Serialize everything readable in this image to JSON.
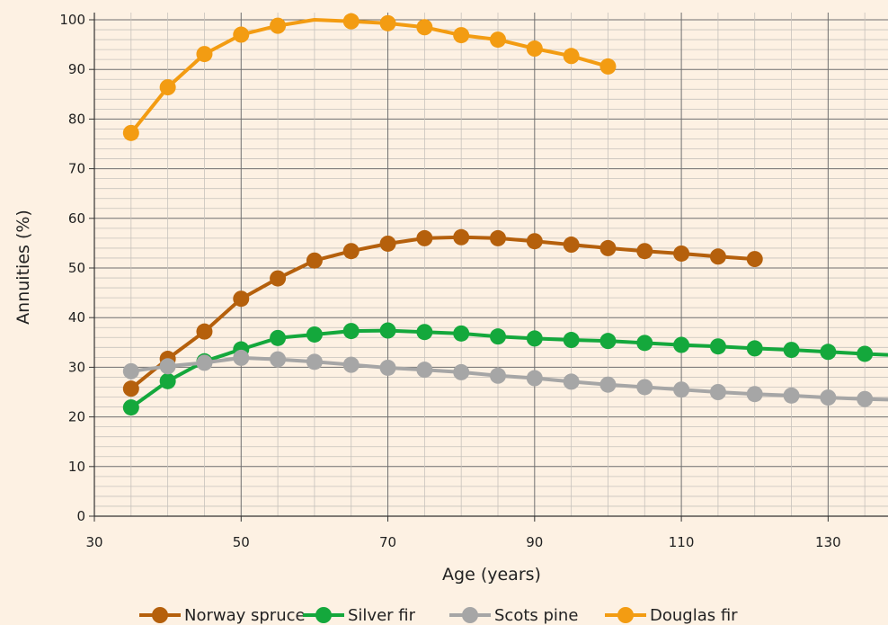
{
  "chart_data": {
    "type": "line",
    "title": "",
    "xlabel": "Age (years)",
    "ylabel": "Annuities (%)",
    "xlim": [
      30,
      140
    ],
    "ylim": [
      0,
      100
    ],
    "x_ticks": [
      30,
      50,
      70,
      90,
      110,
      130
    ],
    "y_ticks": [
      0,
      10,
      20,
      30,
      40,
      50,
      60,
      70,
      80,
      90,
      100
    ],
    "grid": true,
    "legend_position": "bottom",
    "series": [
      {
        "name": "Norway spruce",
        "color": "#b5600c",
        "x": [
          35,
          40,
          45,
          50,
          55,
          60,
          65,
          70,
          75,
          80,
          85,
          90,
          95,
          100,
          105,
          110,
          115,
          120
        ],
        "values": [
          25.7,
          31.7,
          37.2,
          43.8,
          47.9,
          51.5,
          53.4,
          54.9,
          56.0,
          56.2,
          56.0,
          55.4,
          54.7,
          54.0,
          53.4,
          52.9,
          52.3,
          51.8
        ]
      },
      {
        "name": "Silver fir",
        "color": "#14a83c",
        "x": [
          35,
          40,
          45,
          50,
          55,
          60,
          65,
          70,
          75,
          80,
          85,
          90,
          95,
          100,
          105,
          110,
          115,
          120,
          125,
          130,
          135,
          140
        ],
        "values": [
          21.9,
          27.2,
          31.2,
          33.6,
          35.9,
          36.6,
          37.3,
          37.4,
          37.1,
          36.8,
          36.2,
          35.8,
          35.5,
          35.3,
          34.9,
          34.5,
          34.2,
          33.8,
          33.5,
          33.1,
          32.7,
          32.4
        ]
      },
      {
        "name": "Scots pine",
        "color": "#a6a6a6",
        "x": [
          35,
          40,
          45,
          50,
          55,
          60,
          65,
          70,
          75,
          80,
          85,
          90,
          95,
          100,
          105,
          110,
          115,
          120,
          125,
          130,
          135,
          140
        ],
        "values": [
          29.2,
          30.2,
          30.9,
          31.9,
          31.6,
          31.1,
          30.5,
          29.9,
          29.5,
          29.0,
          28.3,
          27.8,
          27.1,
          26.5,
          26.0,
          25.5,
          25.0,
          24.6,
          24.3,
          23.9,
          23.6,
          23.4
        ]
      },
      {
        "name": "Douglas fir",
        "color": "#f39c12",
        "x": [
          35,
          40,
          45,
          50,
          55,
          60,
          65,
          70,
          75,
          80,
          85,
          90,
          95,
          100
        ],
        "values": [
          77.2,
          86.4,
          93.1,
          97.0,
          98.8,
          100.0,
          99.7,
          99.3,
          98.5,
          96.9,
          96.0,
          94.2,
          92.7,
          90.6
        ],
        "markers_skip_x": [
          60
        ]
      }
    ]
  }
}
